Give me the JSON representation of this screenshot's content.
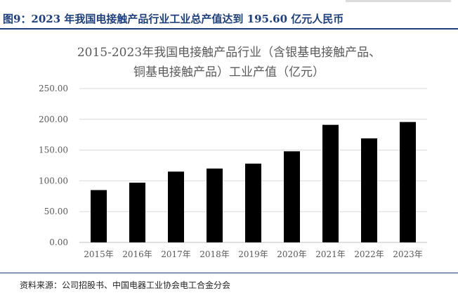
{
  "figure": {
    "caption": "图9：2023 年我国电接触产品行业工业总产值达到 195.60 亿元人民币"
  },
  "chart_data": {
    "type": "bar",
    "title_lines": [
      "2015-2023年我国电接触产品行业（含银基电接触产品、",
      "铜基电接触产品）工业产值（亿元）"
    ],
    "categories": [
      "2015年",
      "2016年",
      "2017年",
      "2018年",
      "2019年",
      "2020年",
      "2021年",
      "2022年",
      "2023年"
    ],
    "values": [
      85,
      97,
      115,
      120,
      128,
      148,
      191,
      169,
      195.6
    ],
    "ylim": [
      0,
      250
    ],
    "yticks": [
      "0.00",
      "50.00",
      "100.00",
      "150.00",
      "200.00",
      "250.00"
    ],
    "grid": true,
    "bar_color": "#000000",
    "grid_color": "#d9d9d9"
  },
  "footer": {
    "source": "资料来源：公司招股书、中国电器工业协会电工合金分会"
  }
}
